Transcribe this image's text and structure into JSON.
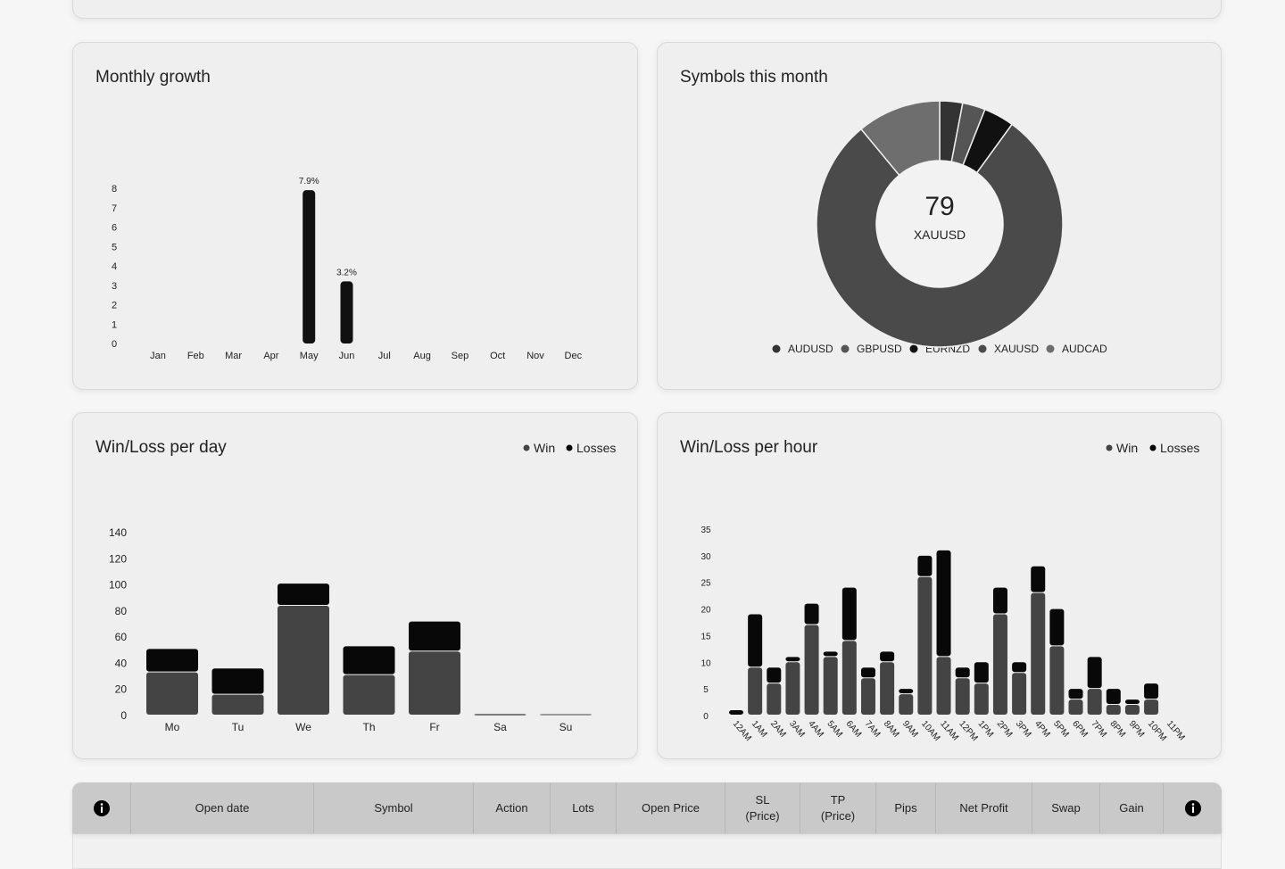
{
  "chart_data": [
    {
      "type": "bar",
      "title": "Monthly growth",
      "categories": [
        "Jan",
        "Feb",
        "Mar",
        "Apr",
        "May",
        "Jun",
        "Jul",
        "Aug",
        "Sep",
        "Oct",
        "Nov",
        "Dec"
      ],
      "values": [
        null,
        null,
        null,
        null,
        7.9,
        3.2,
        null,
        null,
        null,
        null,
        null,
        null
      ],
      "value_labels": [
        null,
        null,
        null,
        null,
        "7.9%",
        "3.2%",
        null,
        null,
        null,
        null,
        null,
        null
      ],
      "color": "#111111",
      "ylim": [
        0,
        8
      ],
      "yticks": [
        0,
        1,
        2,
        3,
        4,
        5,
        6,
        7,
        8
      ]
    },
    {
      "type": "doughnut",
      "title": "Symbols this month",
      "categories": [
        "AUDUSD",
        "GBPUSD",
        "EURNZD",
        "XAUUSD",
        "AUDCAD"
      ],
      "values": [
        3,
        3,
        4,
        79,
        11
      ],
      "colors": [
        "#333333",
        "#555555",
        "#111111",
        "#4a4a4a",
        "#6e6e6e"
      ]
    },
    {
      "type": "stacked_bar",
      "title": "Win/Loss per day",
      "categories": [
        "Mo",
        "Tu",
        "We",
        "Th",
        "Fr",
        "Sa",
        "Su"
      ],
      "series": [
        {
          "name": "Win",
          "color": "#444444",
          "values": [
            33,
            16,
            84,
            31,
            49,
            0,
            1
          ]
        },
        {
          "name": "Losses",
          "color": "#080808",
          "values": [
            18,
            20,
            17,
            22,
            23,
            1,
            0
          ]
        }
      ],
      "ylim": [
        0,
        140
      ],
      "yticks": [
        0,
        20,
        40,
        60,
        80,
        100,
        120,
        140
      ]
    },
    {
      "type": "stacked_bar",
      "title": "Win/Loss per hour",
      "categories": [
        "12AM",
        "1AM",
        "2AM",
        "3AM",
        "4AM",
        "5AM",
        "6AM",
        "7AM",
        "8AM",
        "9AM",
        "10AM",
        "11AM",
        "12PM",
        "1PM",
        "2PM",
        "3PM",
        "4PM",
        "5PM",
        "6PM",
        "7PM",
        "8PM",
        "9PM",
        "10PM",
        "11PM"
      ],
      "series": [
        {
          "name": "Win",
          "color": "#444444",
          "values": [
            0,
            9,
            6,
            10,
            17,
            11,
            14,
            7,
            10,
            4,
            26,
            11,
            7,
            6,
            19,
            8,
            23,
            13,
            3,
            5,
            2,
            2,
            3,
            0
          ]
        },
        {
          "name": "Losses",
          "color": "#080808",
          "values": [
            1,
            10,
            3,
            1,
            4,
            1,
            10,
            2,
            2,
            1,
            4,
            20,
            2,
            4,
            5,
            2,
            5,
            7,
            2,
            6,
            3,
            1,
            3,
            0
          ]
        }
      ],
      "ylim": [
        0,
        35
      ],
      "yticks": [
        0,
        5,
        10,
        15,
        20,
        25,
        30,
        35
      ]
    }
  ],
  "table": {
    "columns": [
      "Open date",
      "Symbol",
      "Action",
      "Lots",
      "Open Price",
      "SL (Price)",
      "TP (Price)",
      "Pips",
      "Net Profit",
      "Swap",
      "Gain"
    ]
  }
}
